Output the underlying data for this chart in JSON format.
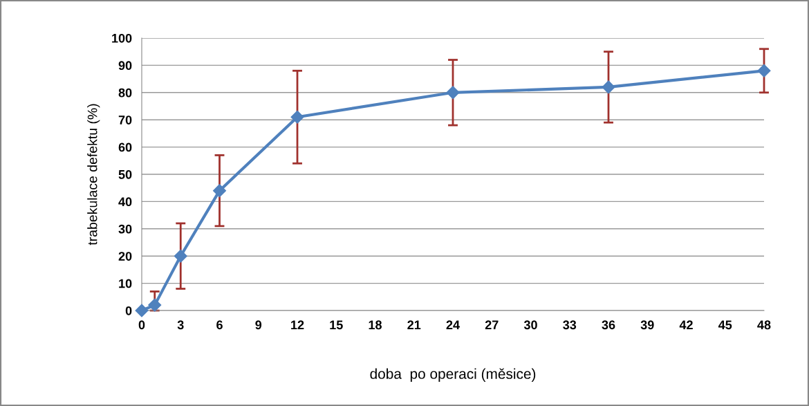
{
  "chart_data": {
    "type": "line",
    "xlabel": "doba  po operaci (měsice)",
    "ylabel": "trabekulace defektu (%)",
    "x": [
      0,
      1,
      3,
      6,
      12,
      24,
      36,
      48
    ],
    "series": [
      {
        "color": "#4f81bd",
        "values": [
          0,
          2,
          20,
          44,
          71,
          80,
          82,
          88
        ],
        "errors": [
          null,
          [
            0,
            7
          ],
          12,
          13,
          17,
          12,
          13,
          8
        ]
      }
    ],
    "xlim": [
      0,
      48
    ],
    "xticks": [
      0,
      3,
      6,
      9,
      12,
      15,
      18,
      21,
      24,
      27,
      30,
      33,
      36,
      39,
      42,
      45,
      48
    ],
    "ylim": [
      0,
      100
    ],
    "yticks": [
      0,
      10,
      20,
      30,
      40,
      50,
      60,
      70,
      80,
      90,
      100
    ],
    "grid": "y",
    "marker": "diamond",
    "line_style": "solid",
    "legend": false
  }
}
